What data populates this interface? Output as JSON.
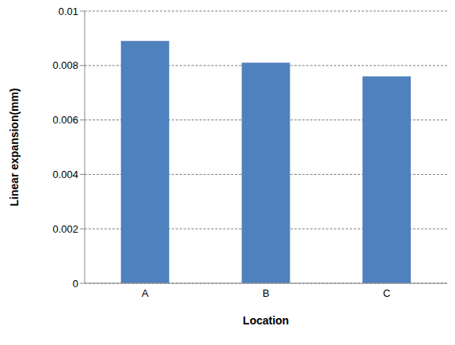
{
  "chart_data": {
    "type": "bar",
    "categories": [
      "A",
      "B",
      "C"
    ],
    "values": [
      0.0089,
      0.0081,
      0.0076
    ],
    "color": "#4f81bd",
    "x_label": "Location",
    "y_label": "Linear expansion(mm)",
    "ylim": [
      0,
      0.01
    ],
    "yticks": [
      0,
      0.002,
      0.004,
      0.006,
      0.008,
      0.01
    ],
    "grid": true
  }
}
